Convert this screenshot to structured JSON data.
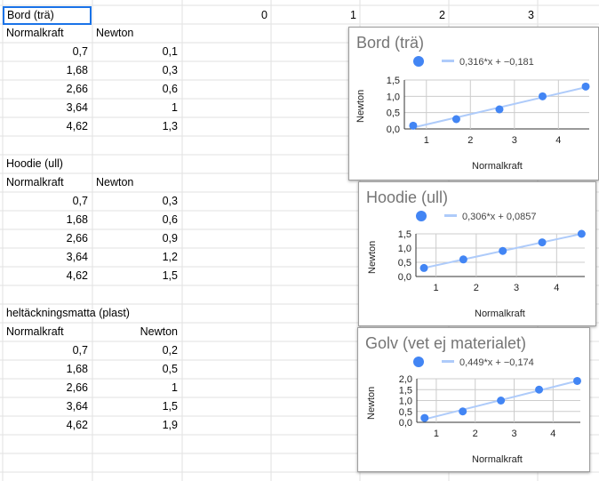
{
  "header_cells": {
    "a1": "Bord (trä)",
    "c1": "0",
    "d1": "1",
    "e1": "2",
    "f1": "3"
  },
  "tables": [
    {
      "title": "Bord (trä)",
      "col1": "Normalkraft",
      "col2": "Newton",
      "rows": [
        [
          "0,7",
          "0,1"
        ],
        [
          "1,68",
          "0,3"
        ],
        [
          "2,66",
          "0,6"
        ],
        [
          "3,64",
          "1"
        ],
        [
          "4,62",
          "1,3"
        ]
      ]
    },
    {
      "title": "Hoodie (ull)",
      "col1": "Normalkraft",
      "col2": "Newton",
      "rows": [
        [
          "0,7",
          "0,3"
        ],
        [
          "1,68",
          "0,6"
        ],
        [
          "2,66",
          "0,9"
        ],
        [
          "3,64",
          "1,2"
        ],
        [
          "4,62",
          "1,5"
        ]
      ]
    },
    {
      "title": "heltäckningsmatta (plast)",
      "col1": "Normalkraft",
      "col2": "Newton",
      "rows": [
        [
          "0,7",
          "0,2"
        ],
        [
          "1,68",
          "0,5"
        ],
        [
          "2,66",
          "1"
        ],
        [
          "3,64",
          "1,5"
        ],
        [
          "4,62",
          "1,9"
        ]
      ]
    }
  ],
  "colors": {
    "point": "#4285f4",
    "trend": "#aecbfa",
    "grid": "#cccccc",
    "cell_border": "#e2e2e2",
    "selection": "#1a73e8"
  },
  "chart_data": [
    {
      "type": "scatter",
      "title": "Bord (trä)",
      "xlabel": "Normalkraft",
      "ylabel": "Newton",
      "trendline_label": "0,316*x + −0,181",
      "x": [
        0.7,
        1.68,
        2.66,
        3.64,
        4.62
      ],
      "y": [
        0.1,
        0.3,
        0.6,
        1.0,
        1.3
      ],
      "trend": {
        "slope": 0.316,
        "intercept": -0.181
      },
      "xlim": [
        0.5,
        4.7
      ],
      "ylim": [
        0,
        1.5
      ],
      "xticks": [
        1,
        2,
        3,
        4
      ],
      "xtick_labels": [
        "1",
        "2",
        "3",
        "4"
      ],
      "yticks": [
        0,
        0.5,
        1.0,
        1.5
      ],
      "ytick_labels": [
        "0,0",
        "0,5",
        "1,0",
        "1,5"
      ],
      "grid": true
    },
    {
      "type": "scatter",
      "title": "Hoodie (ull)",
      "xlabel": "Normalkraft",
      "ylabel": "Newton",
      "trendline_label": "0,306*x + 0,0857",
      "x": [
        0.7,
        1.68,
        2.66,
        3.64,
        4.62
      ],
      "y": [
        0.3,
        0.6,
        0.9,
        1.2,
        1.5
      ],
      "trend": {
        "slope": 0.306,
        "intercept": 0.0857
      },
      "xlim": [
        0.5,
        4.7
      ],
      "ylim": [
        0,
        1.5
      ],
      "xticks": [
        1,
        2,
        3,
        4
      ],
      "xtick_labels": [
        "1",
        "2",
        "3",
        "4"
      ],
      "yticks": [
        0,
        0.5,
        1.0,
        1.5
      ],
      "ytick_labels": [
        "0,0",
        "0,5",
        "1,0",
        "1,5"
      ],
      "grid": true
    },
    {
      "type": "scatter",
      "title": "Golv (vet ej materialet)",
      "xlabel": "Normalkraft",
      "ylabel": "Newton",
      "trendline_label": "0,449*x + −0,174",
      "x": [
        0.7,
        1.68,
        2.66,
        3.64,
        4.62
      ],
      "y": [
        0.2,
        0.5,
        1.0,
        1.5,
        1.9
      ],
      "trend": {
        "slope": 0.449,
        "intercept": -0.174
      },
      "xlim": [
        0.5,
        4.7
      ],
      "ylim": [
        0,
        2.0
      ],
      "xticks": [
        1,
        2,
        3,
        4
      ],
      "xtick_labels": [
        "1",
        "2",
        "3",
        "4"
      ],
      "yticks": [
        0,
        0.5,
        1.0,
        1.5,
        2.0
      ],
      "ytick_labels": [
        "0,0",
        "0,5",
        "1,0",
        "1,5",
        "2,0"
      ],
      "grid": true
    }
  ]
}
